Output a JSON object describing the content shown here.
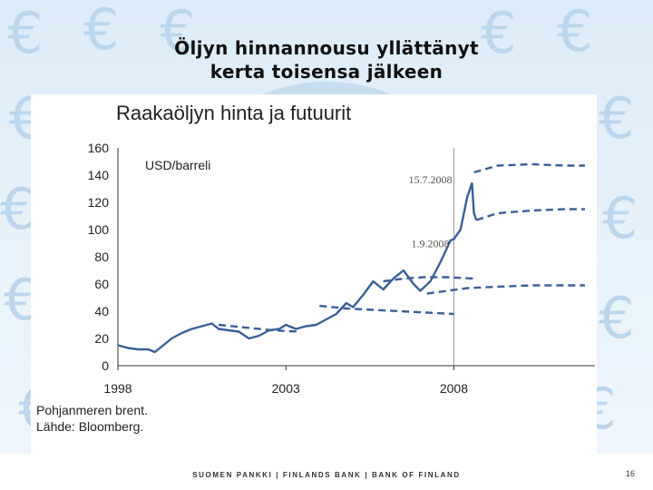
{
  "slide": {
    "title_line1": "Öljyn hinnannousu yllättänyt",
    "title_line2": "kerta toisensa jälkeen",
    "footer": "SUOMEN PANKKI | FINLANDS BANK | BANK OF FINLAND",
    "page_number": "16",
    "note_line1": "Pohjanmeren brent.",
    "note_line2": "Lähde: Bloomberg."
  },
  "colors": {
    "series": "#3a5f97",
    "grid": "#999999",
    "background_euro": "#bcd6ec"
  },
  "chart_data": {
    "type": "line",
    "title": "Raakaöljyn hinta ja futuurit",
    "ylabel": "USD/barreli",
    "ylim": [
      0,
      160
    ],
    "xlim": [
      1998.0,
      2012.2
    ],
    "yticks": [
      "160",
      "140",
      "120",
      "100",
      "80",
      "60",
      "40",
      "20",
      "0"
    ],
    "xticks": [
      {
        "x": 1998,
        "label": "1998"
      },
      {
        "x": 2003,
        "label": "2003"
      },
      {
        "x": 2008,
        "label": "2008"
      }
    ],
    "annotations": [
      {
        "text": "15.7.2008",
        "x": 2007.3,
        "y": 134
      },
      {
        "text": "1.9.2008",
        "x": 2007.3,
        "y": 87
      }
    ],
    "spot": {
      "x": [
        1998.0,
        1998.3,
        1998.6,
        1998.9,
        1999.1,
        1999.3,
        1999.6,
        1999.9,
        2000.2,
        2000.5,
        2000.8,
        2001.0,
        2001.3,
        2001.6,
        2001.9,
        2002.2,
        2002.5,
        2002.8,
        2003.0,
        2003.3,
        2003.6,
        2003.9,
        2004.2,
        2004.5,
        2004.8,
        2005.0,
        2005.3,
        2005.6,
        2005.9,
        2006.2,
        2006.5,
        2006.8,
        2007.0,
        2007.3,
        2007.6,
        2007.9,
        2008.0,
        2008.2,
        2008.4,
        2008.54,
        2008.6,
        2008.67
      ],
      "y": [
        15,
        13,
        12,
        12,
        10,
        14,
        20,
        24,
        27,
        29,
        31,
        27,
        26,
        25,
        20,
        22,
        26,
        27,
        30,
        27,
        29,
        30,
        34,
        38,
        46,
        43,
        52,
        62,
        56,
        64,
        70,
        60,
        55,
        62,
        76,
        92,
        93,
        100,
        124,
        134,
        112,
        107
      ]
    },
    "futures": [
      {
        "x": [
          2001.0,
          2001.8,
          2002.6,
          2003.4
        ],
        "y": [
          30,
          28,
          26,
          25
        ]
      },
      {
        "x": [
          2004.0,
          2004.8,
          2005.6,
          2006.4,
          2007.2,
          2008.0
        ],
        "y": [
          44,
          42,
          41,
          40,
          39,
          38
        ]
      },
      {
        "x": [
          2005.9,
          2006.5,
          2007.1,
          2007.8,
          2008.6
        ],
        "y": [
          62,
          64,
          65,
          65,
          64
        ]
      },
      {
        "x": [
          2007.2,
          2007.8,
          2008.4,
          2009.3,
          2010.3,
          2011.3,
          2011.9
        ],
        "y": [
          53,
          55,
          57,
          58,
          59,
          59,
          59
        ]
      },
      {
        "x": [
          2008.67,
          2009.3,
          2010.3,
          2011.3,
          2011.9
        ],
        "y": [
          107,
          112,
          114,
          115,
          115
        ]
      },
      {
        "x": [
          2008.6,
          2009.3,
          2010.3,
          2011.3,
          2011.9
        ],
        "y": [
          142,
          147,
          148,
          147,
          147
        ]
      }
    ]
  }
}
